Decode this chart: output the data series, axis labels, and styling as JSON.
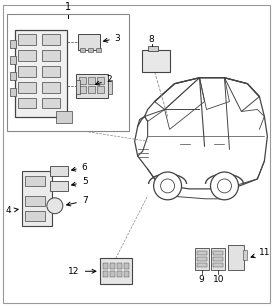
{
  "bg_color": "#ffffff",
  "fig_width": 2.74,
  "fig_height": 3.06,
  "dpi": 100,
  "line_color": "#444444",
  "label_fontsize": 6.5,
  "arrow_color": "#333333"
}
